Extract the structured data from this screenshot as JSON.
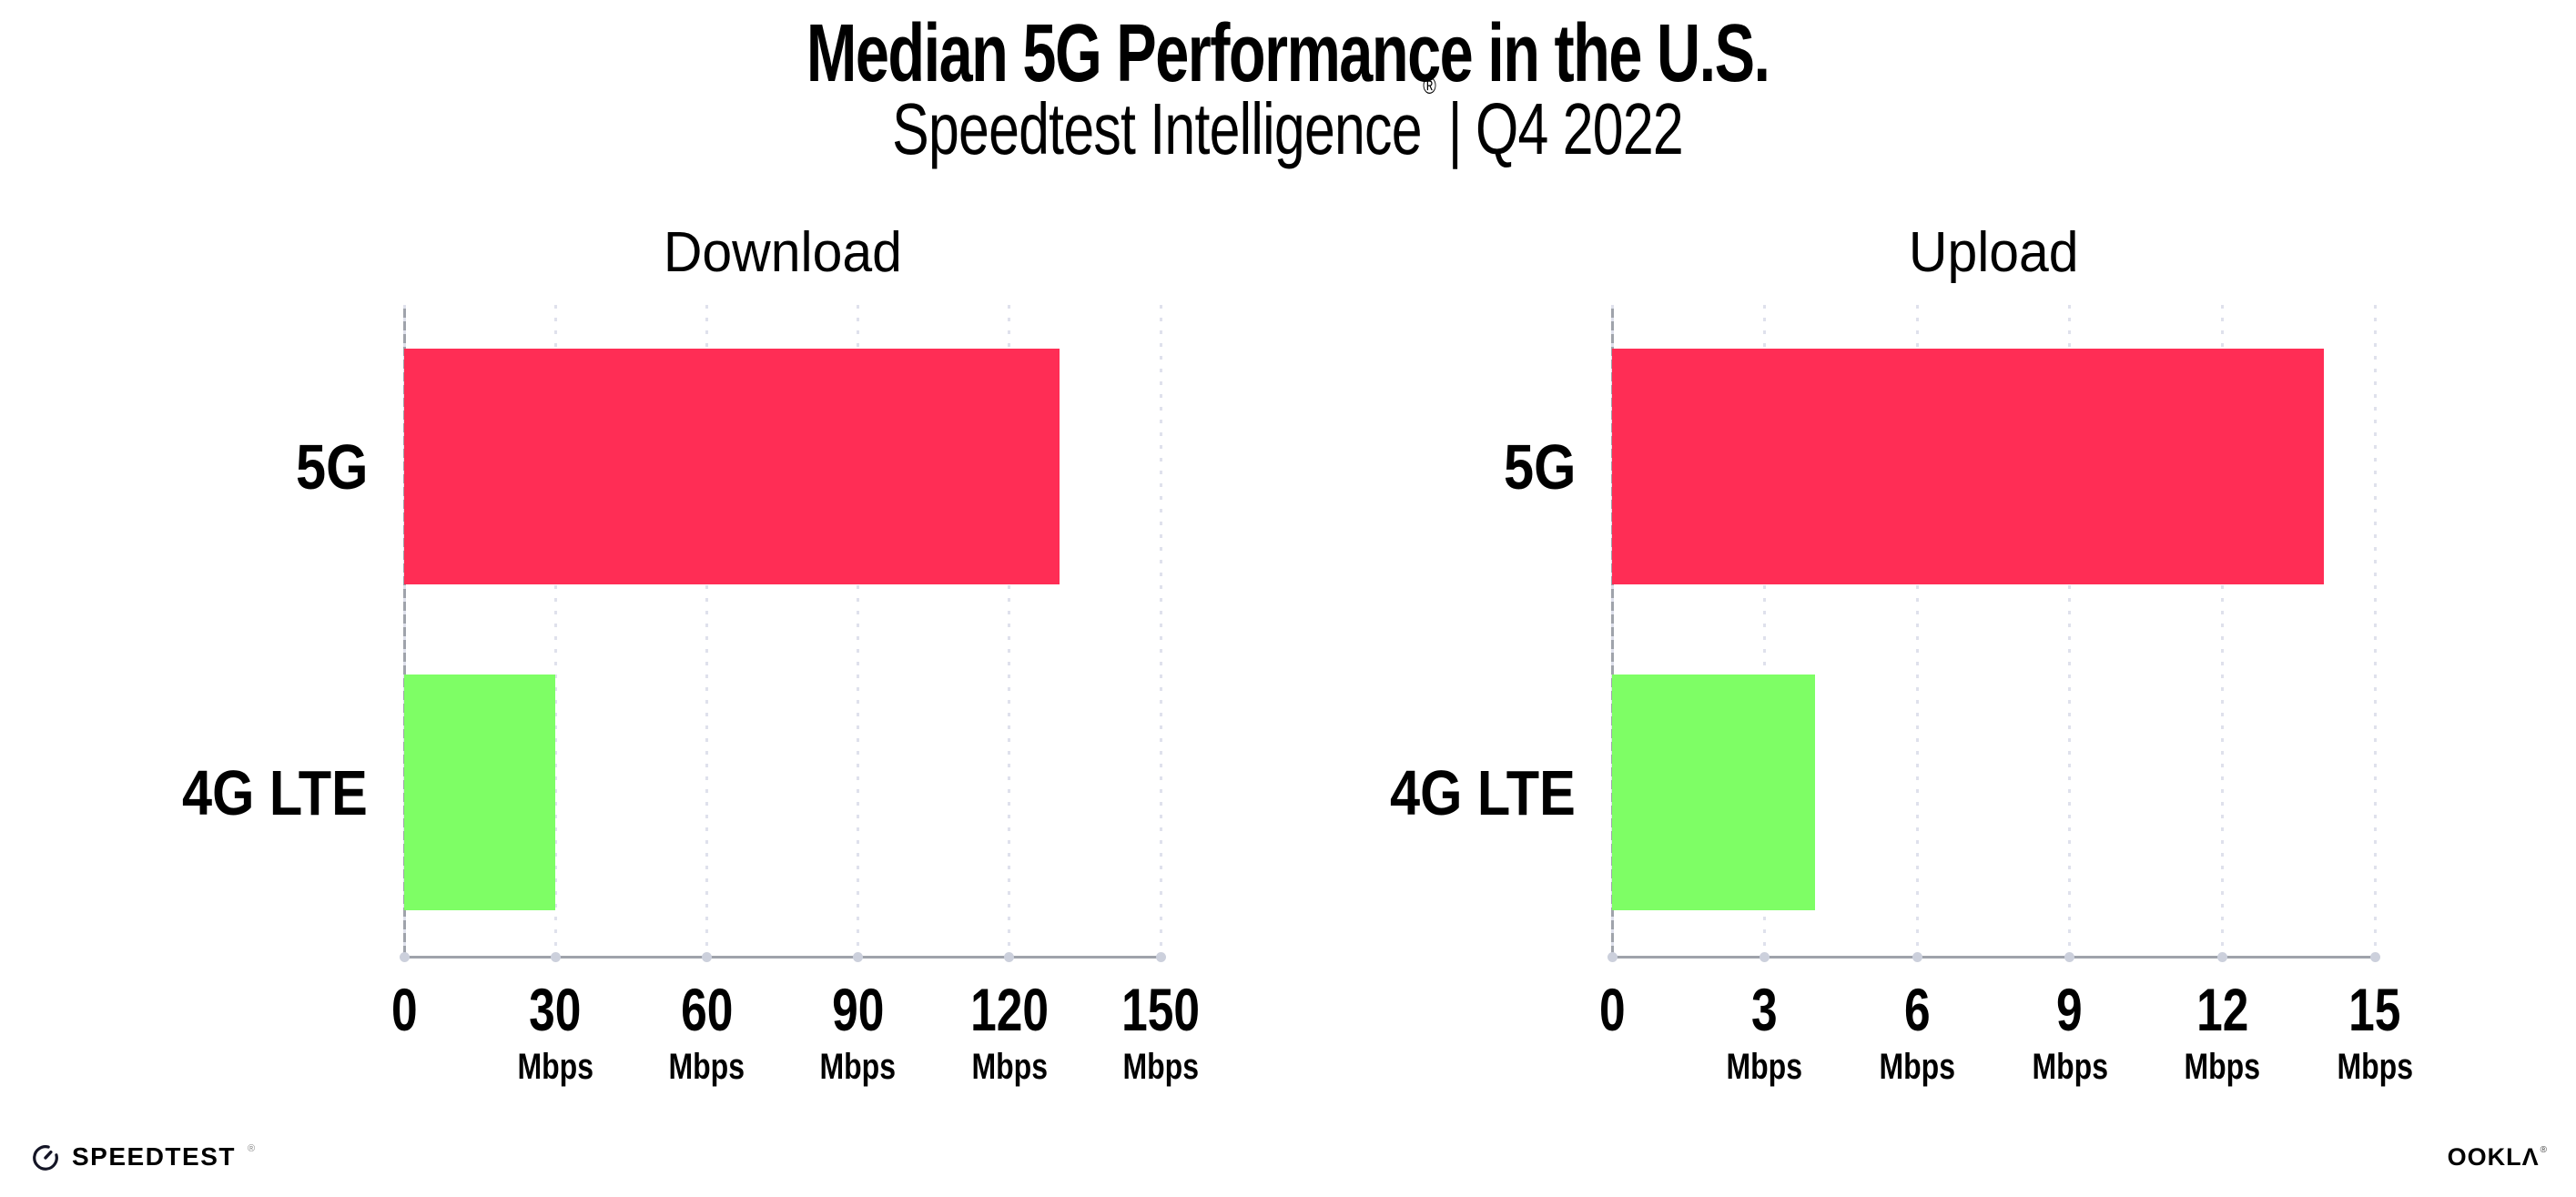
{
  "header": {
    "title": "Median 5G Performance in the U.S.",
    "subtitle_brand": "Speedtest Intelligence",
    "subtitle_mark": "®",
    "subtitle_separator": "|",
    "subtitle_period": "Q4 2022"
  },
  "chart_data": [
    {
      "type": "bar",
      "orientation": "horizontal",
      "title": "Download",
      "categories": [
        "5G",
        "4G LTE"
      ],
      "values": [
        130,
        30
      ],
      "value_unit": "Mbps",
      "xlim": [
        0,
        150
      ],
      "xticks": [
        0,
        30,
        60,
        90,
        120,
        150
      ],
      "tick_unit_label": "Mbps",
      "bar_colors": [
        "#ff2d55",
        "#7efe65"
      ],
      "grid": "dotted-vertical",
      "legend": "none"
    },
    {
      "type": "bar",
      "orientation": "horizontal",
      "title": "Upload",
      "categories": [
        "5G",
        "4G LTE"
      ],
      "values": [
        14,
        4
      ],
      "value_unit": "Mbps",
      "xlim": [
        0,
        15
      ],
      "xticks": [
        0,
        3,
        6,
        9,
        12,
        15
      ],
      "tick_unit_label": "Mbps",
      "bar_colors": [
        "#ff2d55",
        "#7efe65"
      ],
      "grid": "dotted-vertical",
      "legend": "none"
    }
  ],
  "footer": {
    "left_logo_text": "SPEEDTEST",
    "left_logo_mark": "®",
    "right_logo_text": "OOKLA",
    "right_logo_display": "OOKLΛ",
    "right_logo_mark": "®"
  },
  "colors": {
    "background": "#ffffff",
    "bar_5g": "#ff2d55",
    "bar_4g_lte": "#7efe65",
    "axis_line": "#9fa3ab",
    "gridline": "#dfe1ec",
    "tick_dot": "#ccd0dc",
    "text": "#000000"
  }
}
